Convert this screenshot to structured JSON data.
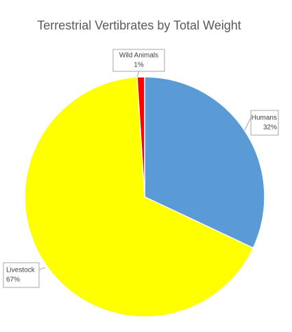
{
  "chart_data": {
    "type": "pie",
    "title": "Terrestrial Vertibrates by Total Weight",
    "categories": [
      "Humans",
      "Livestock",
      "Wild Animals"
    ],
    "values": [
      32,
      67,
      1
    ],
    "value_labels": [
      "32%",
      "67%",
      "1%"
    ],
    "colors": [
      "#5b9bd5",
      "#ffff00",
      "#ff0000"
    ]
  }
}
